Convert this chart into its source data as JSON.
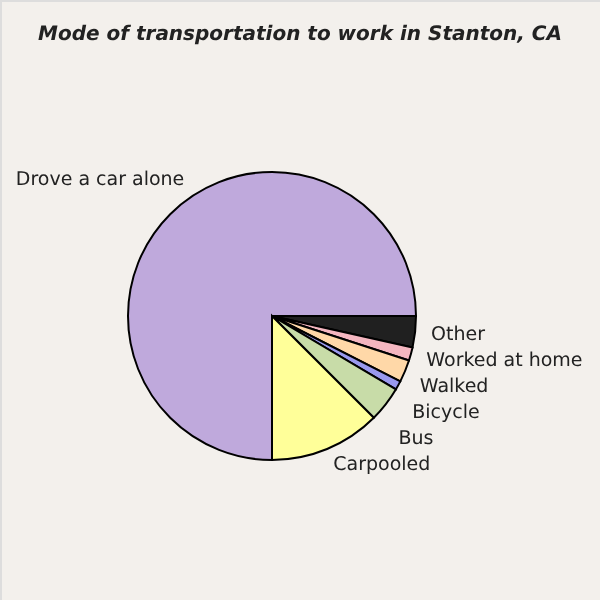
{
  "chart_data": {
    "type": "pie",
    "title": "Mode of transportation to work in Stanton, CA",
    "categories": [
      "Drove a car alone",
      "Other",
      "Worked at home",
      "Walked",
      "Bicycle",
      "Bus",
      "Carpooled"
    ],
    "values": [
      75,
      3.5,
      1.5,
      2.5,
      1,
      4,
      12.5
    ],
    "colors": [
      "#bfa9dc",
      "#202020",
      "#f4b6c0",
      "#ffd8a8",
      "#9999ee",
      "#c8dca8",
      "#ffff99"
    ]
  }
}
